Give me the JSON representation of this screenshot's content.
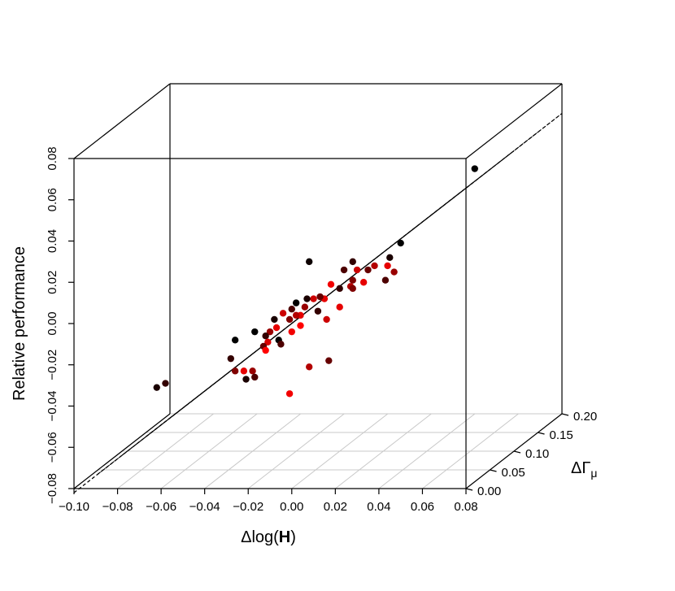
{
  "chart_data": {
    "type": "scatter3d",
    "title": "",
    "xlabel": "Δlog(H)",
    "xlabel_parts": {
      "prefix": "Δlog(",
      "bold": "H",
      "suffix": ")"
    },
    "ylabel": "ΔΓμ",
    "ylabel_parts": {
      "main": "ΔΓ",
      "sub": "μ"
    },
    "zlabel": "Relative performance",
    "xlim": [
      -0.1,
      0.08
    ],
    "ylim": [
      0.0,
      0.2
    ],
    "zlim": [
      -0.08,
      0.08
    ],
    "x_ticks": [
      "−0.10",
      "−0.08",
      "−0.06",
      "−0.04",
      "−0.02",
      "0.00",
      "0.02",
      "0.04",
      "0.06",
      "0.08"
    ],
    "y_ticks": [
      "0.00",
      "0.05",
      "0.10",
      "0.15",
      "0.20"
    ],
    "z_ticks": [
      "−0.08",
      "−0.06",
      "−0.04",
      "−0.02",
      "0.00",
      "0.02",
      "0.04",
      "0.06",
      "0.08"
    ],
    "grid_floor": true,
    "regression_plane": {
      "style": "dashed",
      "intercept": 0.0,
      "slope_x": 0.82,
      "slope_y": 0.0
    },
    "color_scale": [
      "#000000",
      "#ff0000"
    ],
    "points": [
      {
        "x": 0.073,
        "y": 0.05,
        "z": 0.066,
        "c": 0.0
      },
      {
        "x": -0.062,
        "y": 0.0,
        "z": -0.031,
        "c": 0.1
      },
      {
        "x": -0.058,
        "y": 0.0,
        "z": -0.029,
        "c": 0.2
      },
      {
        "x": 0.008,
        "y": 0.0,
        "z": 0.03,
        "c": 0.05
      },
      {
        "x": 0.05,
        "y": 0.0,
        "z": 0.039,
        "c": 0.0
      },
      {
        "x": 0.045,
        "y": 0.0,
        "z": 0.032,
        "c": 0.1
      },
      {
        "x": 0.035,
        "y": 0.0,
        "z": 0.026,
        "c": 0.4
      },
      {
        "x": 0.038,
        "y": 0.0,
        "z": 0.028,
        "c": 0.7
      },
      {
        "x": 0.044,
        "y": 0.0,
        "z": 0.028,
        "c": 0.9
      },
      {
        "x": 0.028,
        "y": 0.0,
        "z": 0.03,
        "c": 0.2
      },
      {
        "x": 0.024,
        "y": 0.0,
        "z": 0.026,
        "c": 0.3
      },
      {
        "x": 0.028,
        "y": 0.0,
        "z": 0.021,
        "c": 0.5
      },
      {
        "x": 0.03,
        "y": 0.0,
        "z": 0.026,
        "c": 0.8
      },
      {
        "x": 0.047,
        "y": 0.0,
        "z": 0.025,
        "c": 0.6
      },
      {
        "x": 0.043,
        "y": 0.0,
        "z": 0.021,
        "c": 0.3
      },
      {
        "x": 0.033,
        "y": 0.0,
        "z": 0.02,
        "c": 0.9
      },
      {
        "x": 0.027,
        "y": 0.0,
        "z": 0.018,
        "c": 0.7
      },
      {
        "x": 0.022,
        "y": 0.0,
        "z": 0.017,
        "c": 0.2
      },
      {
        "x": 0.028,
        "y": 0.0,
        "z": 0.017,
        "c": 0.5
      },
      {
        "x": 0.018,
        "y": 0.0,
        "z": 0.019,
        "c": 0.95
      },
      {
        "x": 0.015,
        "y": 0.0,
        "z": 0.012,
        "c": 0.9
      },
      {
        "x": 0.01,
        "y": 0.0,
        "z": 0.012,
        "c": 0.8
      },
      {
        "x": 0.007,
        "y": 0.0,
        "z": 0.012,
        "c": 0.1
      },
      {
        "x": 0.013,
        "y": 0.0,
        "z": 0.013,
        "c": 0.4
      },
      {
        "x": 0.002,
        "y": 0.0,
        "z": 0.01,
        "c": 0.0
      },
      {
        "x": 0.0,
        "y": 0.0,
        "z": 0.007,
        "c": 0.3
      },
      {
        "x": 0.006,
        "y": 0.0,
        "z": 0.008,
        "c": 0.6
      },
      {
        "x": 0.012,
        "y": 0.0,
        "z": 0.006,
        "c": 0.2
      },
      {
        "x": 0.004,
        "y": 0.0,
        "z": 0.004,
        "c": 0.9
      },
      {
        "x": -0.004,
        "y": 0.0,
        "z": 0.005,
        "c": 0.8
      },
      {
        "x": -0.001,
        "y": 0.0,
        "z": 0.002,
        "c": 0.5
      },
      {
        "x": 0.002,
        "y": 0.0,
        "z": 0.004,
        "c": 0.7
      },
      {
        "x": -0.008,
        "y": 0.0,
        "z": 0.002,
        "c": 0.1
      },
      {
        "x": -0.007,
        "y": 0.0,
        "z": -0.002,
        "c": 0.9
      },
      {
        "x": -0.01,
        "y": 0.0,
        "z": -0.004,
        "c": 0.6
      },
      {
        "x": 0.0,
        "y": 0.0,
        "z": -0.004,
        "c": 0.95
      },
      {
        "x": -0.012,
        "y": 0.0,
        "z": -0.006,
        "c": 0.2
      },
      {
        "x": -0.006,
        "y": 0.0,
        "z": -0.008,
        "c": 0.0
      },
      {
        "x": -0.005,
        "y": 0.0,
        "z": -0.01,
        "c": 0.3
      },
      {
        "x": -0.011,
        "y": 0.0,
        "z": -0.009,
        "c": 0.85
      },
      {
        "x": -0.013,
        "y": 0.0,
        "z": -0.011,
        "c": 0.4
      },
      {
        "x": -0.012,
        "y": 0.0,
        "z": -0.013,
        "c": 1.0
      },
      {
        "x": -0.017,
        "y": 0.0,
        "z": -0.004,
        "c": 0.0
      },
      {
        "x": -0.026,
        "y": 0.0,
        "z": -0.008,
        "c": 0.0
      },
      {
        "x": -0.028,
        "y": 0.0,
        "z": -0.017,
        "c": 0.2
      },
      {
        "x": -0.026,
        "y": 0.0,
        "z": -0.023,
        "c": 0.5
      },
      {
        "x": -0.022,
        "y": 0.0,
        "z": -0.023,
        "c": 0.9
      },
      {
        "x": -0.018,
        "y": 0.0,
        "z": -0.023,
        "c": 0.6
      },
      {
        "x": -0.021,
        "y": 0.0,
        "z": -0.027,
        "c": 0.1
      },
      {
        "x": -0.017,
        "y": 0.0,
        "z": -0.026,
        "c": 0.3
      },
      {
        "x": 0.008,
        "y": 0.0,
        "z": -0.021,
        "c": 0.7
      },
      {
        "x": 0.017,
        "y": 0.0,
        "z": -0.018,
        "c": 0.4
      },
      {
        "x": -0.001,
        "y": 0.0,
        "z": -0.034,
        "c": 0.95
      },
      {
        "x": 0.022,
        "y": 0.0,
        "z": 0.008,
        "c": 0.9
      },
      {
        "x": 0.016,
        "y": 0.0,
        "z": 0.002,
        "c": 0.8
      },
      {
        "x": 0.004,
        "y": 0.0,
        "z": -0.001,
        "c": 1.0
      }
    ]
  }
}
